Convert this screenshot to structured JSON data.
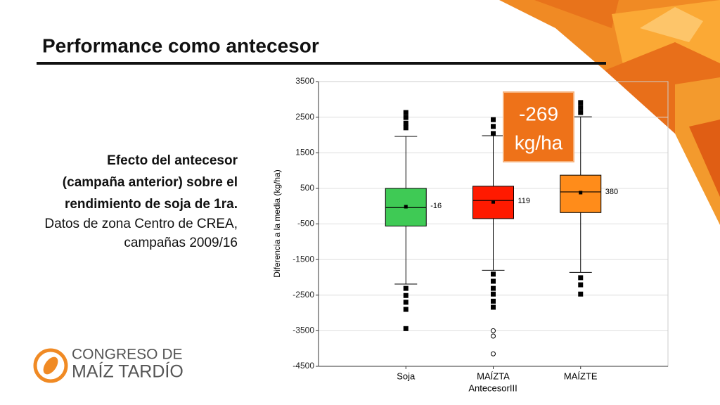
{
  "slide": {
    "title": "Performance como antecesor",
    "description_bold": [
      "Efecto del antecesor",
      "(campaña anterior) sobre el",
      "rendimiento de soja de 1ra."
    ],
    "description_normal": [
      "Datos de zona Centro de CREA,",
      "campañas 2009/16"
    ],
    "callout": [
      "-269",
      "kg/ha"
    ],
    "logo": [
      "CONGRESO DE",
      "MAÍZ TARDÍO"
    ]
  },
  "chart_data": {
    "type": "box",
    "xlabel": "AntecesorIII",
    "ylabel": "Diferencia a la media (kg/ha)",
    "categories": [
      "Soja",
      "MAÍZTA",
      "MAÍZTE"
    ],
    "ylim": [
      -4500,
      3500
    ],
    "yticks": [
      -4500,
      -3500,
      -2500,
      -1500,
      -500,
      500,
      1500,
      2500,
      3500
    ],
    "grid": true,
    "series": [
      {
        "color": "#3fca55",
        "whisker_low": -2190,
        "q1": -560,
        "median": -40,
        "q3": 500,
        "whisker_high": 1960,
        "mean": -16,
        "outliers": [
          2630,
          2490,
          2330,
          2200,
          -2310,
          -2510,
          -2700,
          -2900,
          -3440
        ],
        "extremes": []
      },
      {
        "color": "#ff1a00",
        "whisker_low": -1800,
        "q1": -350,
        "median": 160,
        "q3": 560,
        "whisker_high": 1980,
        "mean": 119,
        "outliers": [
          2430,
          2240,
          2040,
          -1910,
          -2110,
          -2310,
          -2470,
          -2670,
          -2840
        ],
        "extremes": [
          -3500,
          -3650,
          -4150
        ]
      },
      {
        "color": "#ff8c1a",
        "whisker_low": -1860,
        "q1": -180,
        "median": 400,
        "q3": 870,
        "whisker_high": 2510,
        "mean": 380,
        "outliers": [
          2910,
          2770,
          2630,
          -2010,
          -2210,
          -2470
        ],
        "extremes": []
      }
    ]
  }
}
